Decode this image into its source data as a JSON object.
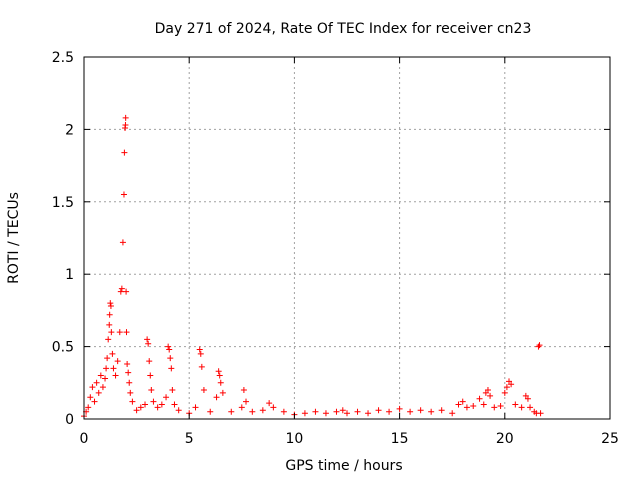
{
  "chart_data": {
    "type": "scatter",
    "title": "Day 271 of 2024, Rate Of TEC Index for receiver cn23",
    "xlabel": "GPS time / hours",
    "ylabel": "ROTI / TECUs",
    "xlim": [
      0,
      25
    ],
    "ylim": [
      0,
      2.5
    ],
    "xticks": [
      0,
      5,
      10,
      15,
      20,
      25
    ],
    "yticks": [
      0,
      0.5,
      1,
      1.5,
      2,
      2.5
    ],
    "xtick_labels": [
      "0",
      "5",
      "10",
      "15",
      "20",
      "25"
    ],
    "ytick_labels": [
      "0",
      "0.5",
      "1",
      "1.5",
      "2",
      "2.5"
    ],
    "grid": true,
    "marker": "+",
    "color": "#ff0000",
    "series": [
      {
        "name": "ROTI",
        "x": [
          0.0,
          0.1,
          0.2,
          0.3,
          0.4,
          0.5,
          0.6,
          0.7,
          0.8,
          0.9,
          1.0,
          1.05,
          1.1,
          1.15,
          1.2,
          1.22,
          1.25,
          1.28,
          1.3,
          1.35,
          1.4,
          1.5,
          1.6,
          1.7,
          1.75,
          1.8,
          1.85,
          1.9,
          1.92,
          1.95,
          1.97,
          1.98,
          2.0,
          2.02,
          2.05,
          2.1,
          2.15,
          2.2,
          2.3,
          2.5,
          2.7,
          2.9,
          3.0,
          3.05,
          3.1,
          3.15,
          3.2,
          3.3,
          3.5,
          3.7,
          3.9,
          4.0,
          4.05,
          4.1,
          4.15,
          4.2,
          4.3,
          4.5,
          5.0,
          5.3,
          5.5,
          5.55,
          5.6,
          5.7,
          6.0,
          6.3,
          6.4,
          6.45,
          6.5,
          6.6,
          7.0,
          7.5,
          7.6,
          7.7,
          8.0,
          8.5,
          8.8,
          9.0,
          9.5,
          10.0,
          10.5,
          11.0,
          11.5,
          12.0,
          12.3,
          12.5,
          13.0,
          13.5,
          14.0,
          14.5,
          15.0,
          15.5,
          16.0,
          16.5,
          17.0,
          17.5,
          17.8,
          18.0,
          18.2,
          18.5,
          18.8,
          19.0,
          19.1,
          19.2,
          19.3,
          19.5,
          19.8,
          20.0,
          20.1,
          20.2,
          20.3,
          20.5,
          20.8,
          21.0,
          21.1,
          21.2,
          21.4,
          21.5,
          21.6,
          21.65,
          21.7
        ],
        "y": [
          0.02,
          0.05,
          0.08,
          0.15,
          0.22,
          0.12,
          0.25,
          0.18,
          0.3,
          0.22,
          0.28,
          0.35,
          0.42,
          0.55,
          0.65,
          0.72,
          0.8,
          0.78,
          0.6,
          0.45,
          0.35,
          0.3,
          0.4,
          0.6,
          0.88,
          0.9,
          1.22,
          1.55,
          1.84,
          2.01,
          2.03,
          2.08,
          0.88,
          0.6,
          0.38,
          0.32,
          0.25,
          0.18,
          0.12,
          0.06,
          0.08,
          0.1,
          0.55,
          0.52,
          0.4,
          0.3,
          0.2,
          0.12,
          0.08,
          0.1,
          0.15,
          0.5,
          0.48,
          0.42,
          0.35,
          0.2,
          0.1,
          0.06,
          0.04,
          0.08,
          0.48,
          0.45,
          0.36,
          0.2,
          0.05,
          0.15,
          0.33,
          0.3,
          0.25,
          0.18,
          0.05,
          0.08,
          0.2,
          0.12,
          0.05,
          0.06,
          0.11,
          0.08,
          0.05,
          0.03,
          0.04,
          0.05,
          0.04,
          0.05,
          0.06,
          0.04,
          0.05,
          0.04,
          0.06,
          0.05,
          0.07,
          0.05,
          0.06,
          0.05,
          0.06,
          0.04,
          0.1,
          0.12,
          0.08,
          0.09,
          0.14,
          0.1,
          0.18,
          0.2,
          0.16,
          0.08,
          0.09,
          0.18,
          0.22,
          0.26,
          0.24,
          0.1,
          0.08,
          0.16,
          0.14,
          0.08,
          0.05,
          0.04,
          0.5,
          0.51,
          0.04
        ]
      }
    ]
  }
}
